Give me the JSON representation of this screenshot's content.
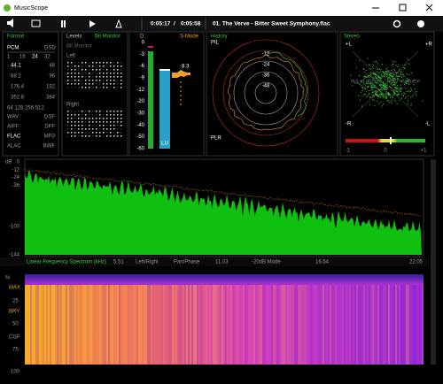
{
  "window": {
    "title": "MusicScope"
  },
  "toolbar": {
    "elapsed": "0:05:17",
    "separator": "/",
    "total": "0:05:58",
    "track": "01. The Verve - Bitter Sweet Symphony.flac"
  },
  "format": {
    "title": "Format",
    "pcm": "PCM",
    "dsd": "DSD",
    "bits": [
      "1",
      "16",
      "24",
      "32"
    ],
    "rates": [
      [
        "44.1",
        "48"
      ],
      [
        "88.2",
        "96"
      ],
      [
        "176.4",
        "192"
      ],
      [
        "352.8",
        "384"
      ]
    ],
    "dsd_rates": "64  128  256  512",
    "containers": [
      [
        "WAV",
        "DSF"
      ],
      [
        "AIFF",
        "DFF"
      ],
      [
        "FLAC",
        "MP3"
      ],
      [
        "ALAC",
        "BWF"
      ]
    ]
  },
  "levels": {
    "title": "Levels",
    "mode": "Bit Monitor",
    "subtitle": "Bit Monitor",
    "left": "Left",
    "right": "Right"
  },
  "meter": {
    "d": "D",
    "mode": "S-Mode",
    "scale": [
      "0",
      "-3",
      "-6",
      "-9",
      "-12",
      "-20",
      "-30",
      "-40",
      "-50",
      "-60"
    ],
    "unit": "LU",
    "loudness": "8.3"
  },
  "history": {
    "title": "History",
    "top": "PIL",
    "bottom": "PLR",
    "rings": [
      "-12",
      "-24",
      "-36",
      "-48"
    ]
  },
  "stereo": {
    "title": "Stereo",
    "plus_l": "+L",
    "plus_r": "+R",
    "minus_r": "-R",
    "minus_l": "-L",
    "out_left": "out of phase",
    "out_right": "out of phase",
    "scale": [
      "-1",
      "0",
      "+1"
    ]
  },
  "spectrum": {
    "unit": "dB",
    "scale": [
      "0",
      "-12",
      "-24",
      "-36",
      "-100",
      "-144"
    ]
  },
  "bottom_bar": {
    "mode": "Linear Frequency Spectrum (kHz)",
    "f1": "5.51",
    "lr": "Left/Right",
    "pan": "Pan/Phase",
    "f2": "11.03",
    "db_mode": "-20dB Mode",
    "f3": "16.54",
    "f4": "22.05"
  },
  "spectrogram": {
    "unit": "%",
    "max": "MAX",
    "p25": "25",
    "bry": "BRY",
    "p50": "50",
    "cgf": "CGF",
    "p75": "75",
    "p100": "100"
  }
}
